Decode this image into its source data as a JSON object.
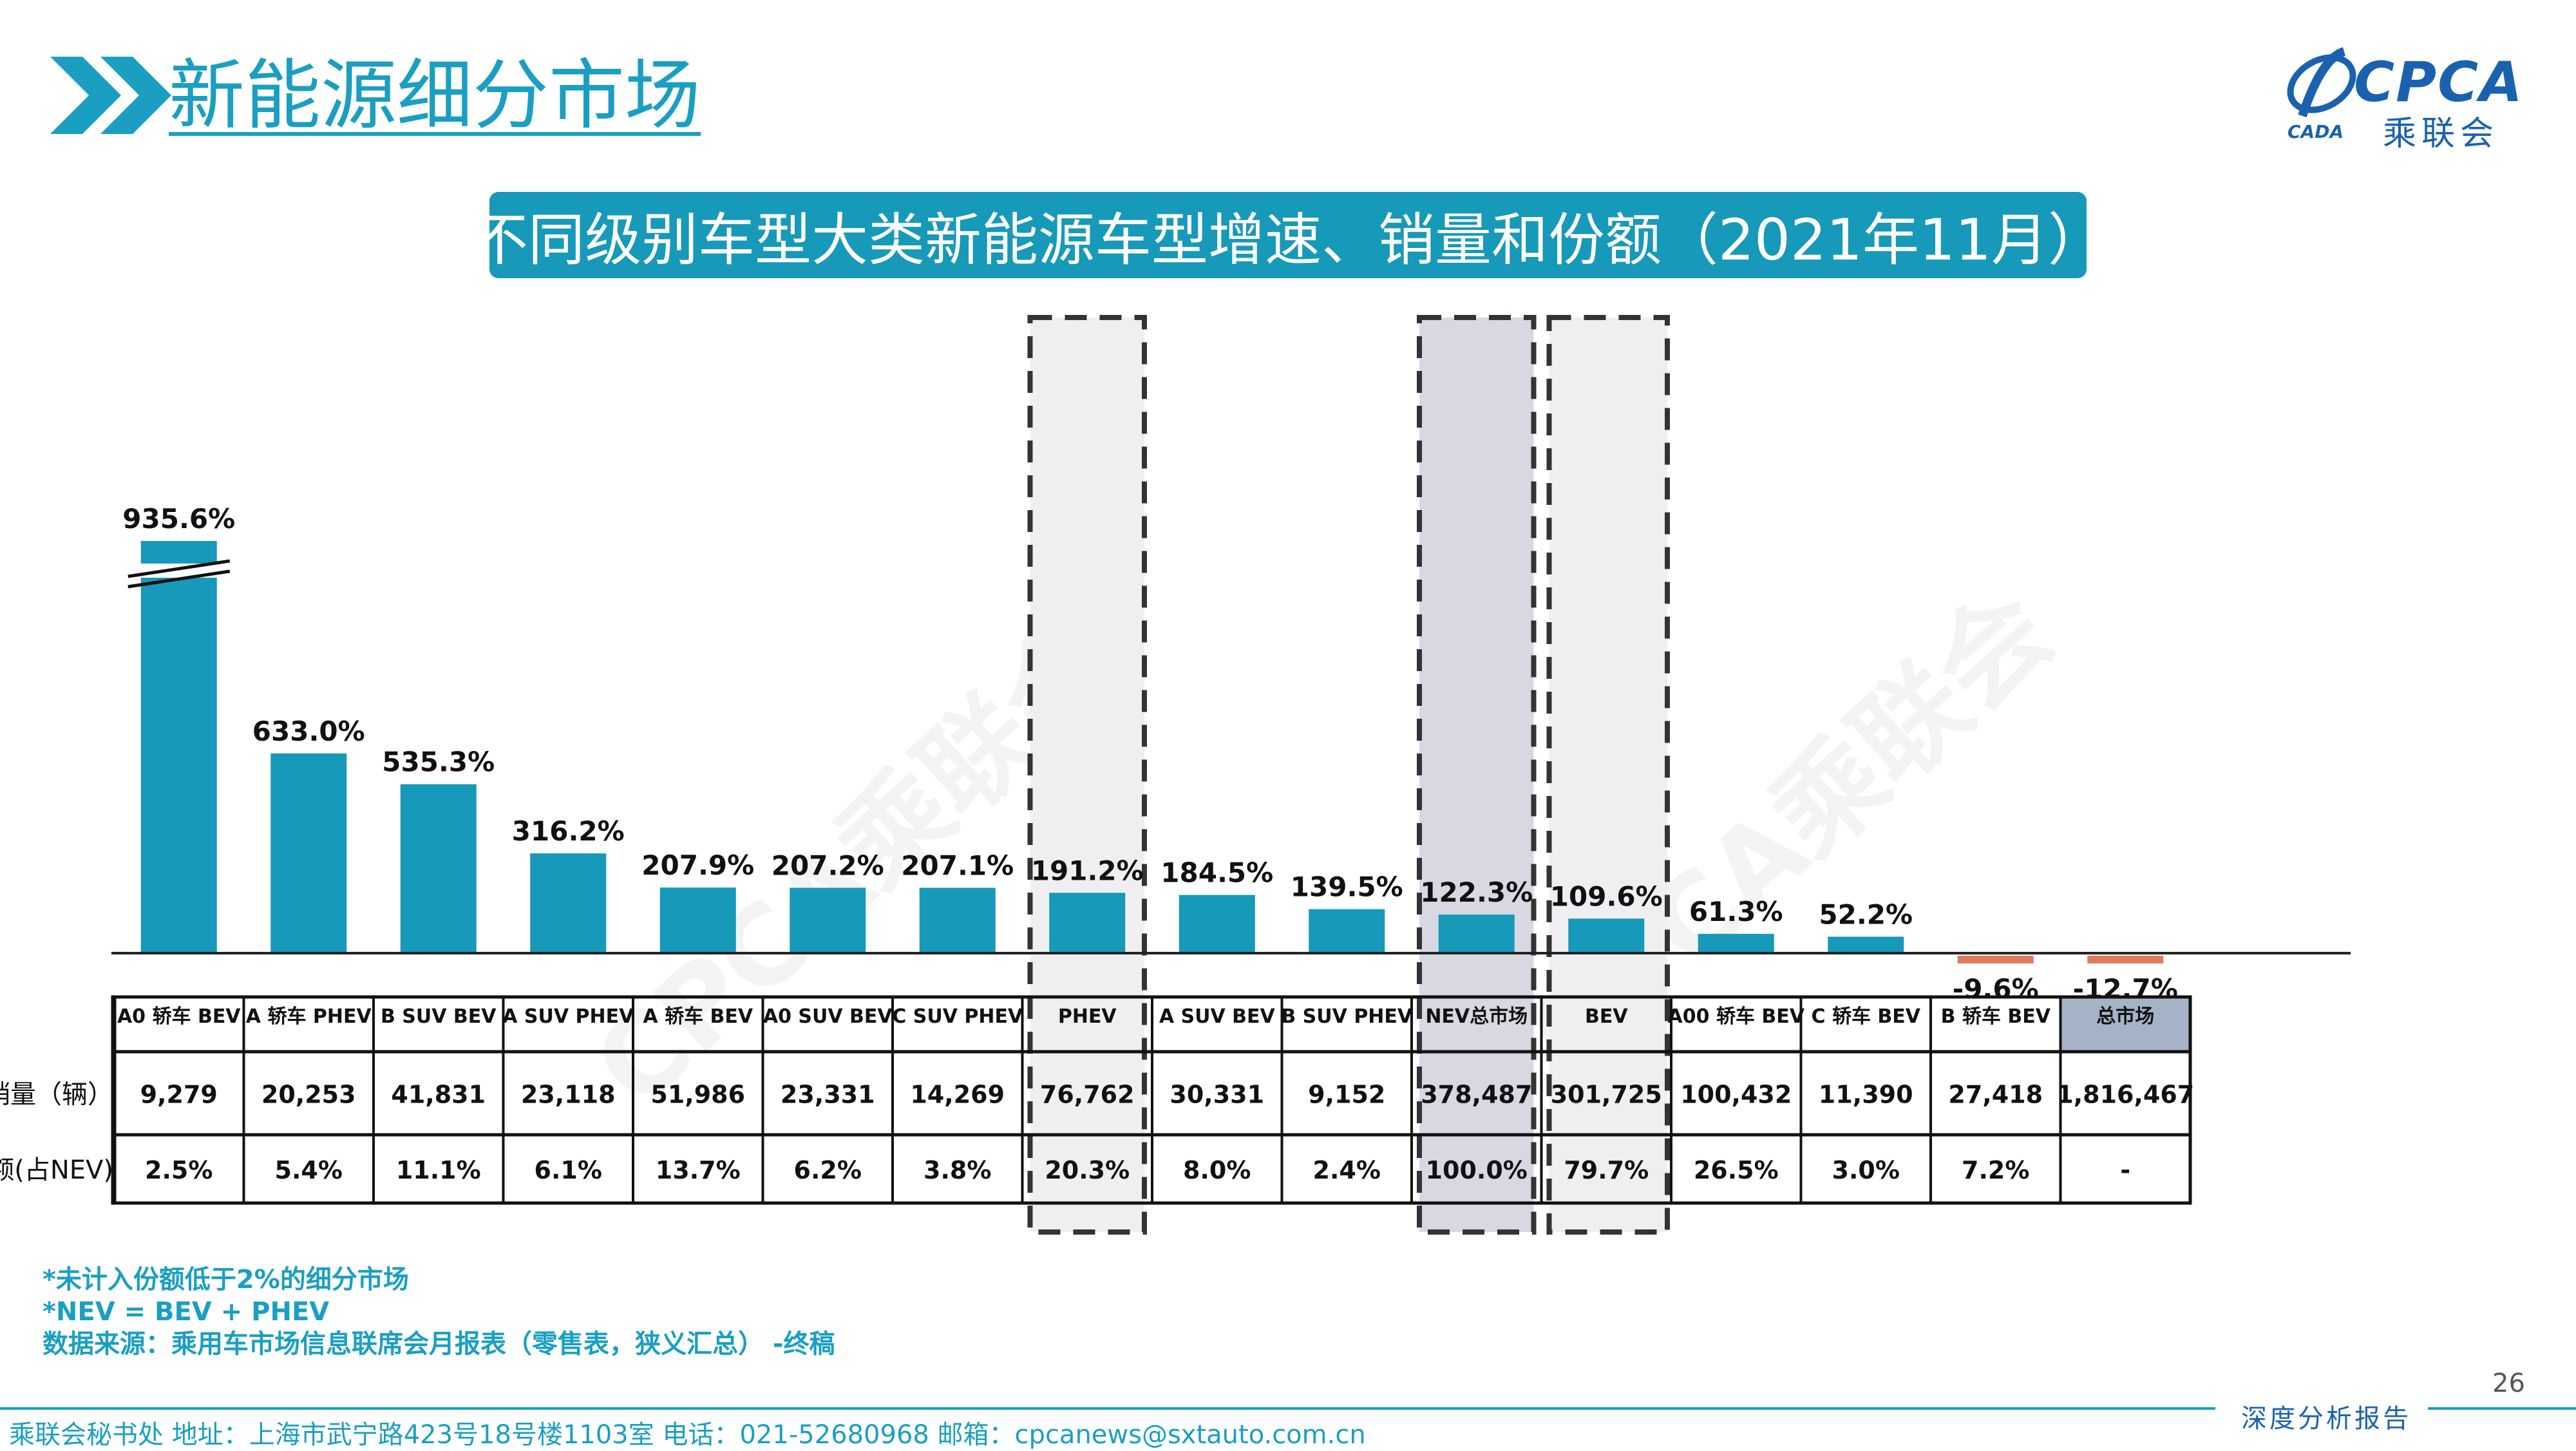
{
  "header": {
    "title": "新能源细分市场",
    "subtitle": "不同级别车型大类新能源车型增速、销量和份额（2021年11月）",
    "logo_text": "CPCA",
    "logo_cn": "乘联会",
    "logo_small": "CADA"
  },
  "chart_data": {
    "type": "bar",
    "title": "不同级别车型大类新能源车型增速、销量和份额（2021年11月）",
    "categories": [
      "A0 轿车 BEV",
      "A 轿车 PHEV",
      "B SUV BEV",
      "A SUV PHEV",
      "A 轿车 BEV",
      "A0 SUV BEV",
      "C SUV PHEV",
      "PHEV",
      "A SUV BEV",
      "B SUV PHEV",
      "NEV总市场",
      "BEV",
      "A00 轿车 BEV",
      "C 轿车 BEV",
      "B 轿车 BEV",
      "总市场"
    ],
    "values": [
      935.6,
      633.0,
      535.3,
      316.2,
      207.9,
      207.2,
      207.1,
      191.2,
      184.5,
      139.5,
      122.3,
      109.6,
      61.3,
      52.2,
      -9.6,
      -12.7
    ],
    "value_labels": [
      "935.6%",
      "633.0%",
      "535.3%",
      "316.2%",
      "207.9%",
      "207.2%",
      "207.1%",
      "191.2%",
      "184.5%",
      "139.5%",
      "122.3%",
      "109.6%",
      "61.3%",
      "52.2%",
      "-9.6%",
      "-12.7%"
    ],
    "axis_break_on_first_bar": true,
    "highlight_boxes": [
      "PHEV",
      "NEV总市场",
      "BEV"
    ],
    "colors": {
      "positive": "#1799b9",
      "negative": "#e07a5f",
      "total_market_cell": "#a6b3c7",
      "nev_box_fill": "#d7d8e2",
      "box_fill": "#efeff1"
    },
    "table": {
      "rows": [
        {
          "label": "销量（辆）",
          "values": [
            "9,279",
            "20,253",
            "41,831",
            "23,118",
            "51,986",
            "23,331",
            "14,269",
            "76,762",
            "30,331",
            "9,152",
            "378,487",
            "301,725",
            "100,432",
            "11,390",
            "27,418",
            "1,816,467"
          ]
        },
        {
          "label": "份额(占NEV)",
          "values": [
            "2.5%",
            "5.4%",
            "11.1%",
            "6.1%",
            "13.7%",
            "6.2%",
            "3.8%",
            "20.3%",
            "8.0%",
            "2.4%",
            "100.0%",
            "79.7%",
            "26.5%",
            "3.0%",
            "7.2%",
            "-"
          ]
        }
      ]
    }
  },
  "notes": [
    "*未计入份额低于2%的细分市场",
    "*NEV = BEV + PHEV",
    "数据来源：乘用车市场信息联席会月报表（零售表，狭义汇总） -终稿"
  ],
  "page_number": "26",
  "footer": {
    "text": "乘联会秘书处   地址：上海市武宁路423号18号楼1103室  电话：021-52680968   邮箱：cpcanews@sxtauto.com.cn",
    "right": "深度分析报告"
  },
  "watermark": "CPCA乘联会"
}
